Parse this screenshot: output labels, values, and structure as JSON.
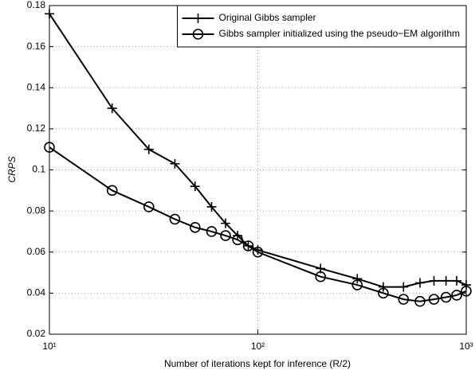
{
  "chart_data": {
    "type": "line",
    "xlabel": "Number of iterations kept for inference (R/2)",
    "ylabel": "CRPS",
    "x": [
      10,
      20,
      30,
      40,
      50,
      60,
      70,
      80,
      90,
      100,
      200,
      300,
      400,
      500,
      600,
      700,
      800,
      900,
      1000
    ],
    "series": [
      {
        "name": "Original Gibbs sampler",
        "color": "#000000",
        "marker": "plus",
        "values": [
          0.176,
          0.13,
          0.11,
          0.103,
          0.092,
          0.082,
          0.074,
          0.068,
          0.063,
          0.061,
          0.052,
          0.047,
          0.043,
          0.043,
          0.045,
          0.046,
          0.046,
          0.046,
          0.044
        ]
      },
      {
        "name": "Gibbs sampler initialized using the pseudo−EM algorithm",
        "color": "#000000",
        "marker": "circle",
        "values": [
          0.111,
          0.09,
          0.082,
          0.076,
          0.072,
          0.07,
          0.068,
          0.066,
          0.063,
          0.06,
          0.048,
          0.044,
          0.04,
          0.037,
          0.036,
          0.037,
          0.038,
          0.039,
          0.041
        ]
      }
    ],
    "xscale": "log",
    "xlim": [
      10,
      1000
    ],
    "xticks": [
      {
        "value": 10,
        "label": "10¹"
      },
      {
        "value": 100,
        "label": "10²"
      },
      {
        "value": 1000,
        "label": "10³"
      }
    ],
    "ylim": [
      0.02,
      0.18
    ],
    "yticks": [
      0.02,
      0.04,
      0.06,
      0.08,
      0.1,
      0.12,
      0.14,
      0.16,
      0.18
    ],
    "grid": true,
    "legend": "top-right"
  }
}
